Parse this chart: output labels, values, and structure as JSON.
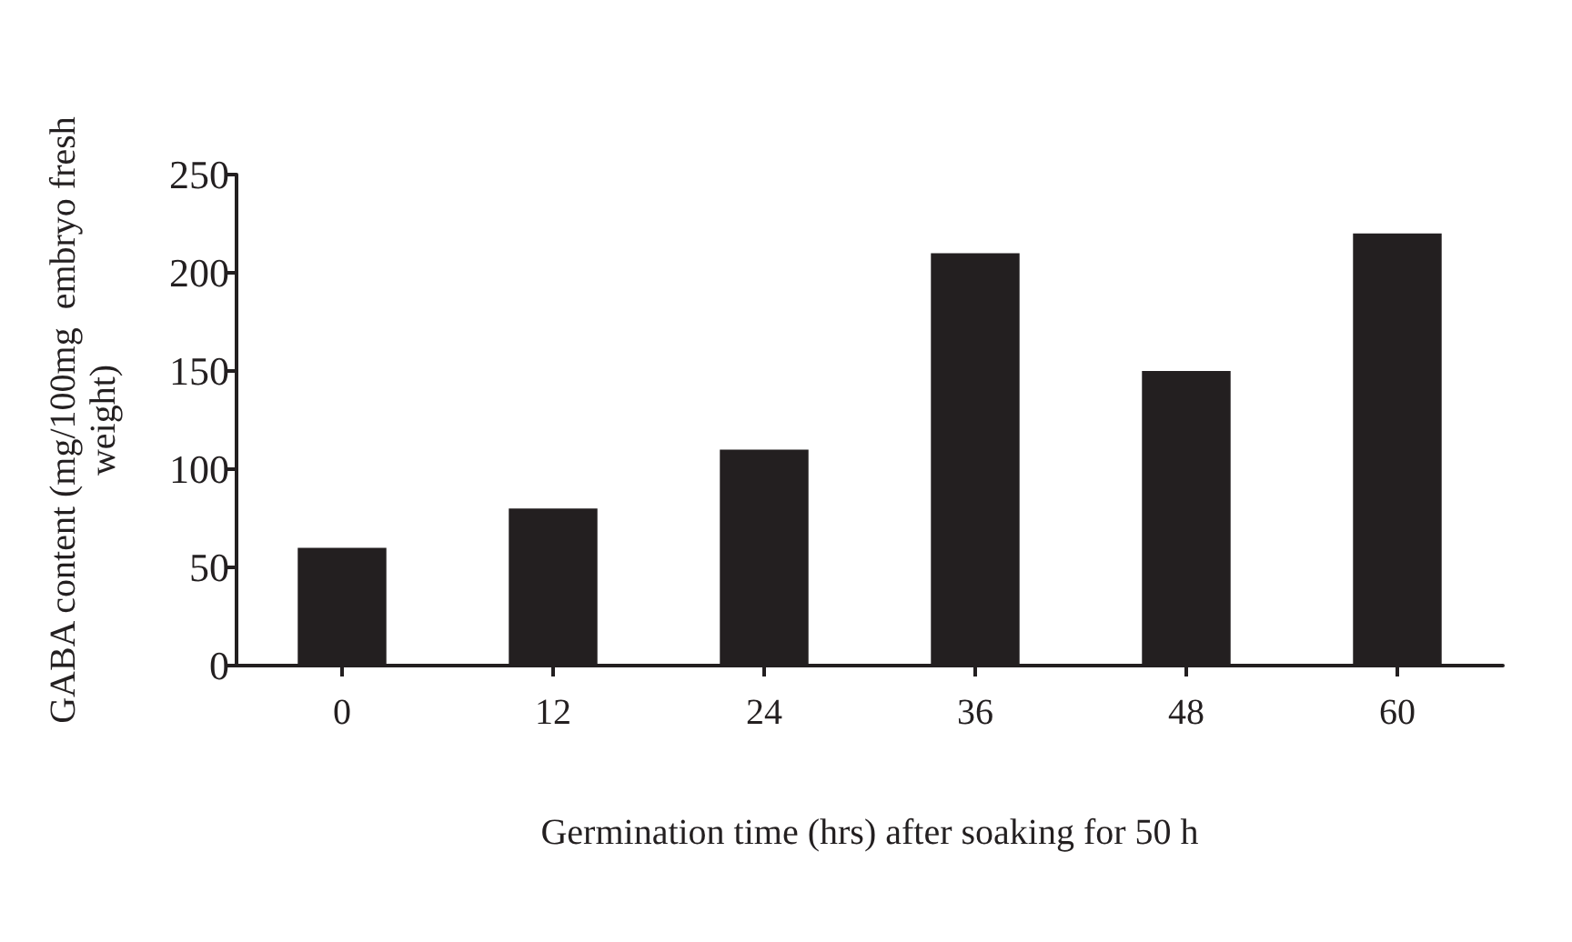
{
  "chart_data": {
    "type": "bar",
    "xlabel": "Germination time (hrs) after soaking for 50 h",
    "ylabel": "GABA content (mg/100mg  embryo fresh weight)",
    "categories": [
      "0",
      "12",
      "24",
      "36",
      "48",
      "60"
    ],
    "values": [
      60,
      80,
      110,
      210,
      150,
      220
    ],
    "color": "#231f20",
    "ylim": [
      0,
      250
    ],
    "yticks": [
      0,
      50,
      100,
      150,
      200,
      250
    ],
    "grid": false
  }
}
